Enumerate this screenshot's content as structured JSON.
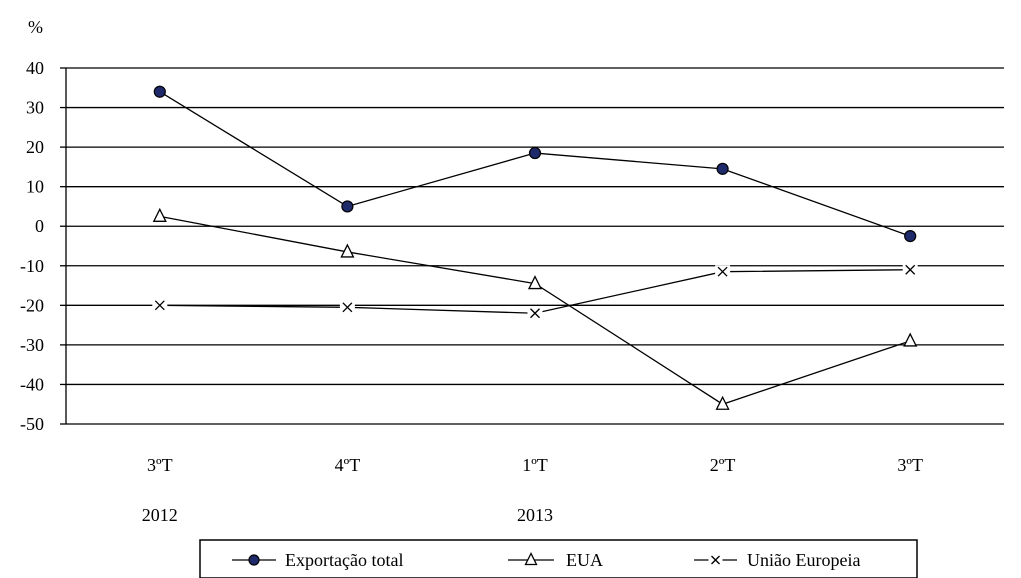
{
  "chart_data": {
    "type": "line",
    "ylabel": "%",
    "ylim": [
      -50,
      40
    ],
    "yticks": [
      40,
      30,
      20,
      10,
      0,
      -10,
      -20,
      -30,
      -40,
      -50
    ],
    "categories": [
      "3ºT",
      "4ºT",
      "1ºT",
      "2ºT",
      "3ºT"
    ],
    "years": [
      {
        "label": "2012",
        "category_index": 0
      },
      {
        "label": "2013",
        "category_index": 2
      }
    ],
    "grid": true,
    "legend_position": "bottom",
    "series": [
      {
        "name": "Exportação total",
        "marker": "filled-circle",
        "marker_color": "#1f2a6b",
        "values": [
          34,
          5,
          18.5,
          14.5,
          -2.5
        ]
      },
      {
        "name": "EUA",
        "marker": "open-triangle",
        "marker_color": "#000000",
        "values": [
          2.5,
          -6.5,
          -14.5,
          -45,
          -29
        ]
      },
      {
        "name": "União Europeia",
        "marker": "x",
        "marker_color": "#000000",
        "values": [
          -20,
          -20.5,
          -22,
          -11.5,
          -11
        ]
      }
    ]
  }
}
